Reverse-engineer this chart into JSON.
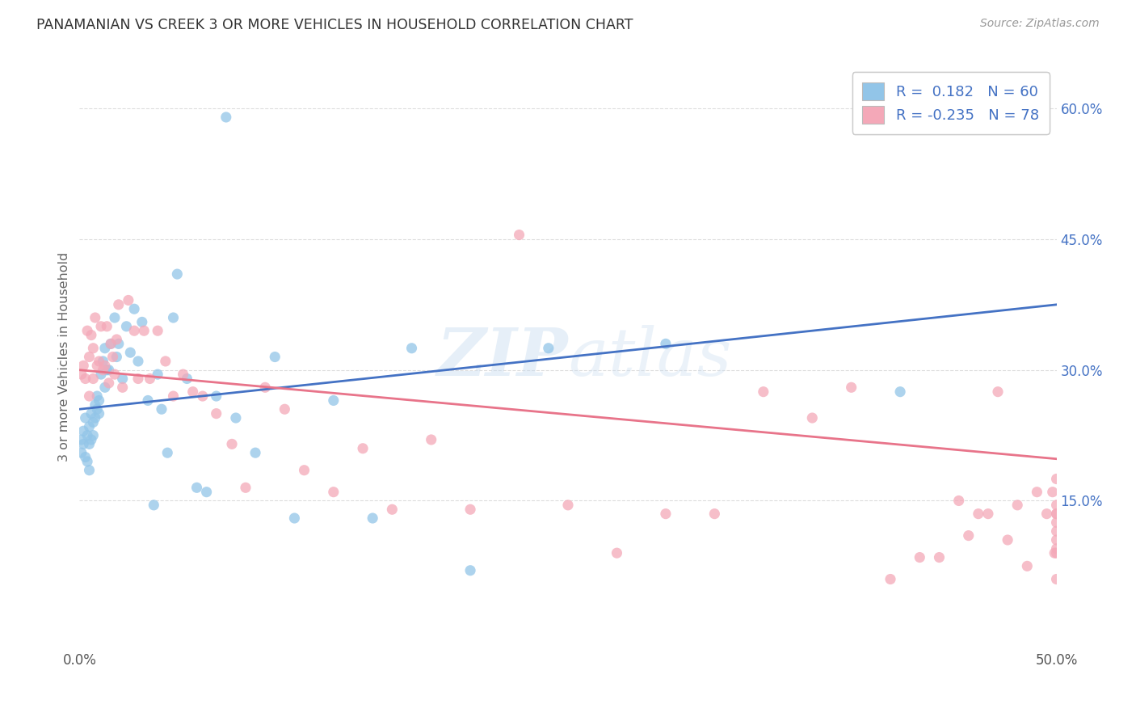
{
  "title": "PANAMANIAN VS CREEK 3 OR MORE VEHICLES IN HOUSEHOLD CORRELATION CHART",
  "source": "Source: ZipAtlas.com",
  "ylabel_text": "3 or more Vehicles in Household",
  "watermark_zip": "ZIP",
  "watermark_atlas": "atlas",
  "xlim": [
    0.0,
    0.5
  ],
  "ylim": [
    -0.02,
    0.65
  ],
  "xtick_positions": [
    0.0,
    0.1,
    0.2,
    0.3,
    0.4,
    0.5
  ],
  "xtick_labels": [
    "0.0%",
    "",
    "",
    "",
    "",
    "50.0%"
  ],
  "yticks_right": [
    0.15,
    0.3,
    0.45,
    0.6
  ],
  "ytick_right_labels": [
    "15.0%",
    "30.0%",
    "45.0%",
    "60.0%"
  ],
  "panamanian_color": "#92C5E8",
  "creek_color": "#F4A8B8",
  "panamanian_line_color": "#4472C4",
  "creek_line_color": "#E8748A",
  "legend_r_panama": "R =  0.182",
  "legend_n_panama": "N = 60",
  "legend_r_creek": "R = -0.235",
  "legend_n_creek": "N = 78",
  "panama_x": [
    0.001,
    0.001,
    0.002,
    0.002,
    0.003,
    0.003,
    0.004,
    0.004,
    0.005,
    0.005,
    0.005,
    0.006,
    0.006,
    0.007,
    0.007,
    0.008,
    0.008,
    0.009,
    0.009,
    0.01,
    0.01,
    0.011,
    0.012,
    0.013,
    0.013,
    0.014,
    0.015,
    0.016,
    0.018,
    0.019,
    0.02,
    0.022,
    0.024,
    0.026,
    0.028,
    0.03,
    0.032,
    0.035,
    0.038,
    0.04,
    0.042,
    0.045,
    0.048,
    0.05,
    0.055,
    0.06,
    0.065,
    0.07,
    0.075,
    0.08,
    0.09,
    0.1,
    0.11,
    0.13,
    0.15,
    0.17,
    0.2,
    0.24,
    0.3,
    0.42
  ],
  "panama_y": [
    0.22,
    0.205,
    0.23,
    0.215,
    0.245,
    0.2,
    0.195,
    0.225,
    0.185,
    0.215,
    0.235,
    0.22,
    0.25,
    0.225,
    0.24,
    0.26,
    0.245,
    0.27,
    0.255,
    0.265,
    0.25,
    0.295,
    0.31,
    0.325,
    0.28,
    0.3,
    0.3,
    0.33,
    0.36,
    0.315,
    0.33,
    0.29,
    0.35,
    0.32,
    0.37,
    0.31,
    0.355,
    0.265,
    0.145,
    0.295,
    0.255,
    0.205,
    0.36,
    0.41,
    0.29,
    0.165,
    0.16,
    0.27,
    0.59,
    0.245,
    0.205,
    0.315,
    0.13,
    0.265,
    0.13,
    0.325,
    0.07,
    0.325,
    0.33,
    0.275
  ],
  "creek_x": [
    0.001,
    0.002,
    0.003,
    0.004,
    0.005,
    0.005,
    0.006,
    0.007,
    0.007,
    0.008,
    0.009,
    0.01,
    0.011,
    0.012,
    0.013,
    0.014,
    0.015,
    0.016,
    0.017,
    0.018,
    0.019,
    0.02,
    0.022,
    0.025,
    0.028,
    0.03,
    0.033,
    0.036,
    0.04,
    0.044,
    0.048,
    0.053,
    0.058,
    0.063,
    0.07,
    0.078,
    0.085,
    0.095,
    0.105,
    0.115,
    0.13,
    0.145,
    0.16,
    0.18,
    0.2,
    0.225,
    0.25,
    0.275,
    0.3,
    0.325,
    0.35,
    0.375,
    0.395,
    0.415,
    0.43,
    0.44,
    0.45,
    0.455,
    0.46,
    0.465,
    0.47,
    0.475,
    0.48,
    0.485,
    0.49,
    0.495,
    0.498,
    0.499,
    0.5,
    0.5,
    0.5,
    0.5,
    0.5,
    0.5,
    0.5,
    0.5,
    0.5,
    0.5
  ],
  "creek_y": [
    0.295,
    0.305,
    0.29,
    0.345,
    0.315,
    0.27,
    0.34,
    0.29,
    0.325,
    0.36,
    0.305,
    0.31,
    0.35,
    0.3,
    0.305,
    0.35,
    0.285,
    0.33,
    0.315,
    0.295,
    0.335,
    0.375,
    0.28,
    0.38,
    0.345,
    0.29,
    0.345,
    0.29,
    0.345,
    0.31,
    0.27,
    0.295,
    0.275,
    0.27,
    0.25,
    0.215,
    0.165,
    0.28,
    0.255,
    0.185,
    0.16,
    0.21,
    0.14,
    0.22,
    0.14,
    0.455,
    0.145,
    0.09,
    0.135,
    0.135,
    0.275,
    0.245,
    0.28,
    0.06,
    0.085,
    0.085,
    0.15,
    0.11,
    0.135,
    0.135,
    0.275,
    0.105,
    0.145,
    0.075,
    0.16,
    0.135,
    0.16,
    0.09,
    0.135,
    0.135,
    0.105,
    0.145,
    0.06,
    0.09,
    0.175,
    0.115,
    0.095,
    0.125
  ],
  "background_color": "#FFFFFF",
  "grid_color": "#DDDDDD",
  "title_color": "#333333",
  "right_tick_color": "#4472C4",
  "panama_line_y0": 0.255,
  "panama_line_y1": 0.375,
  "creek_line_y0": 0.3,
  "creek_line_y1": 0.198
}
